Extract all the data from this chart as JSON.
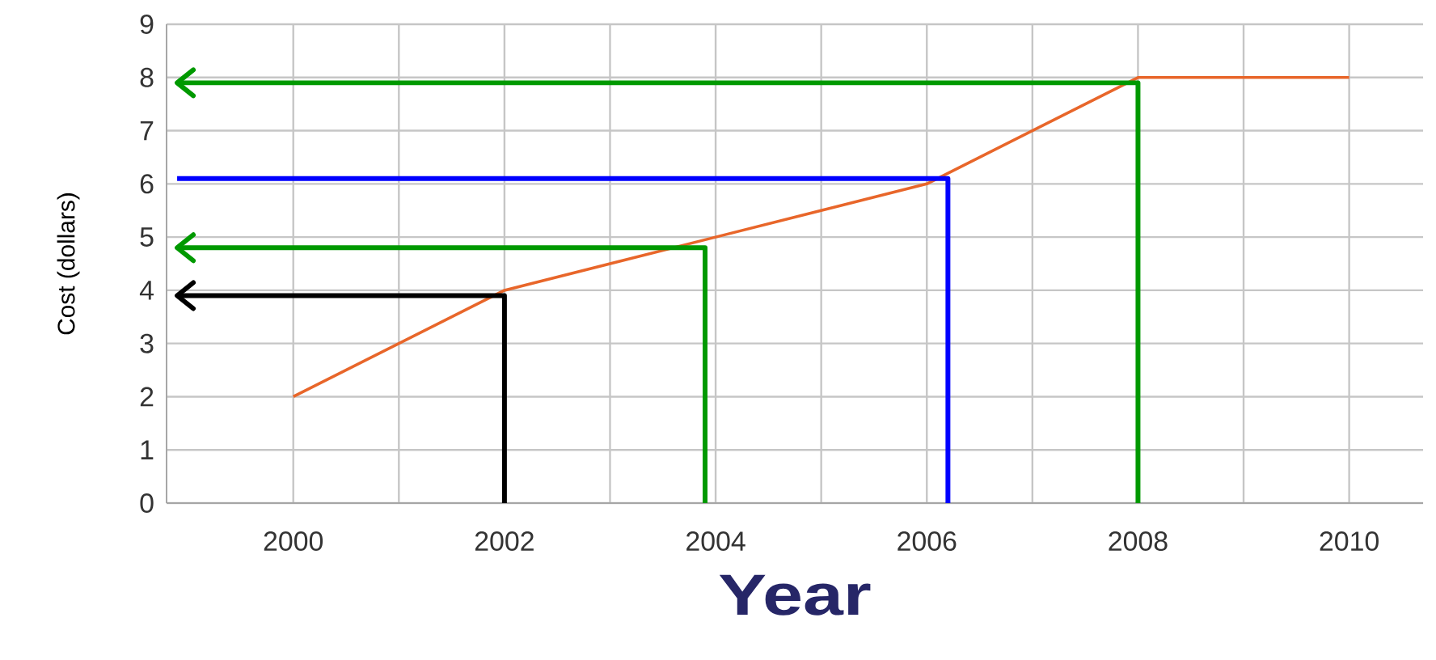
{
  "chart_data": {
    "type": "line",
    "xlabel": "Year",
    "ylabel": "Cost (dollars)",
    "x": [
      2000,
      2002,
      2004,
      2006,
      2008,
      2010
    ],
    "series": [
      {
        "color": "#e8662a",
        "values": [
          2,
          4,
          5,
          6,
          8,
          8
        ]
      },
      {
        "color": "#000000",
        "x": [
          2002,
          2002,
          1998.9
        ],
        "values": [
          0,
          3.9,
          3.9
        ]
      },
      {
        "color": "#009900",
        "x": [
          2003.9,
          2003.9,
          1998.9
        ],
        "values": [
          0,
          4.8,
          4.8
        ]
      },
      {
        "color": "#0000ff",
        "x": [
          2006.2,
          2006.2,
          1998.9
        ],
        "values": [
          0,
          6.1,
          6.1
        ]
      },
      {
        "color": "#009900",
        "x": [
          2008,
          2008,
          1998.9
        ],
        "values": [
          0,
          7.9,
          7.9
        ]
      }
    ],
    "xlim": [
      1998.8,
      2010.7
    ],
    "ylim": [
      0,
      9
    ],
    "xticks": [
      2000,
      {
        "value": 2001,
        "label": null
      },
      2002,
      {
        "value": 2003,
        "label": null
      },
      2004,
      {
        "value": 2005,
        "label": null
      },
      2006,
      {
        "value": 2007,
        "label": null
      },
      2008,
      {
        "value": 2009,
        "label": null
      },
      2010
    ],
    "yticks": [
      0,
      1,
      2,
      3,
      4,
      5,
      6,
      7,
      8,
      9
    ],
    "grid": true,
    "marker": "none",
    "line_style": "solid"
  }
}
